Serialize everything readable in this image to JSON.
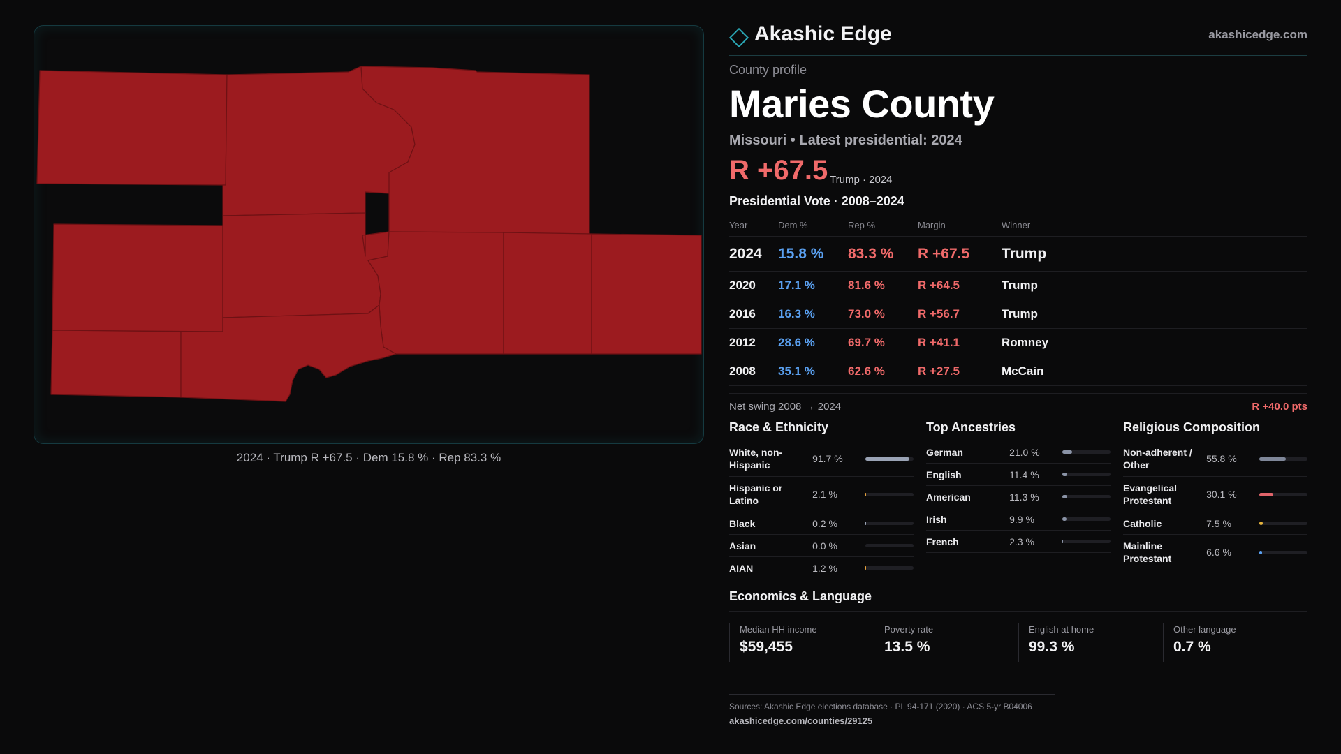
{
  "map": {
    "caption": "2024 · Trump R +67.5 · Dem 15.8 % · Rep 83.3 %",
    "fill_color": "#9c1b1f"
  },
  "brand": {
    "name": "Akashic Edge",
    "url": "akashicedge.com",
    "icon": "diamond-icon"
  },
  "profile": {
    "eyebrow": "County profile",
    "county": "Maries County",
    "subtitle": "Missouri • Latest presidential: 2024",
    "margin": "R +67.5",
    "margin_note": "Trump · 2024"
  },
  "vote": {
    "title": "Presidential Vote · 2008–2024",
    "headers": {
      "year": "Year",
      "dem": "Dem %",
      "rep": "Rep %",
      "margin": "Margin",
      "winner": "Winner"
    },
    "rows": [
      {
        "year": "2024",
        "dem": "15.8 %",
        "rep": "83.3 %",
        "margin": "R +67.5",
        "winner": "Trump"
      },
      {
        "year": "2020",
        "dem": "17.1 %",
        "rep": "81.6 %",
        "margin": "R +64.5",
        "winner": "Trump"
      },
      {
        "year": "2016",
        "dem": "16.3 %",
        "rep": "73.0 %",
        "margin": "R +56.7",
        "winner": "Trump"
      },
      {
        "year": "2012",
        "dem": "28.6 %",
        "rep": "69.7 %",
        "margin": "R +41.1",
        "winner": "Romney"
      },
      {
        "year": "2008",
        "dem": "35.1 %",
        "rep": "62.6 %",
        "margin": "R +27.5",
        "winner": "McCain"
      }
    ],
    "swing_label": "Net swing 2008 → 2024",
    "swing_value": "R +40.0 pts"
  },
  "race": {
    "title": "Race & Ethnicity",
    "rows": [
      {
        "label": "White, non-Hispanic",
        "value": "91.7 %",
        "pct": 91.7,
        "color": "#9aa3b5"
      },
      {
        "label": "Hispanic or Latino",
        "value": "2.1 %",
        "pct": 2.1,
        "color": "#e6a23c"
      },
      {
        "label": "Black",
        "value": "0.2 %",
        "pct": 0.2,
        "color": "#9aa3b5"
      },
      {
        "label": "Asian",
        "value": "0.0 %",
        "pct": 0.0,
        "color": "#9aa3b5"
      },
      {
        "label": "AIAN",
        "value": "1.2 %",
        "pct": 1.2,
        "color": "#e6a23c"
      }
    ]
  },
  "ancestry": {
    "title": "Top Ancestries",
    "rows": [
      {
        "label": "German",
        "value": "21.0 %",
        "pct": 21.0,
        "color": "#8a93a6"
      },
      {
        "label": "English",
        "value": "11.4 %",
        "pct": 11.4,
        "color": "#8a93a6"
      },
      {
        "label": "American",
        "value": "11.3 %",
        "pct": 11.3,
        "color": "#8a93a6"
      },
      {
        "label": "Irish",
        "value": "9.9 %",
        "pct": 9.9,
        "color": "#8a93a6"
      },
      {
        "label": "French",
        "value": "2.3 %",
        "pct": 2.3,
        "color": "#8a93a6"
      }
    ]
  },
  "religion": {
    "title": "Religious Composition",
    "rows": [
      {
        "label": "Non-adherent / Other",
        "value": "55.8 %",
        "pct": 55.8,
        "color": "#7f8799"
      },
      {
        "label": "Evangelical Protestant",
        "value": "30.1 %",
        "pct": 30.1,
        "color": "#e0646a"
      },
      {
        "label": "Catholic",
        "value": "7.5 %",
        "pct": 7.5,
        "color": "#e6b43c"
      },
      {
        "label": "Mainline Protestant",
        "value": "6.6 %",
        "pct": 6.6,
        "color": "#5aa0f0"
      }
    ]
  },
  "economics": {
    "title": "Economics & Language",
    "cells": [
      {
        "label": "Median HH income",
        "value": "$59,455"
      },
      {
        "label": "Poverty rate",
        "value": "13.5 %"
      },
      {
        "label": "English at home",
        "value": "99.3 %"
      },
      {
        "label": "Other language",
        "value": "0.7 %"
      }
    ]
  },
  "sources": {
    "text": "Sources: Akashic Edge elections database · PL 94-171 (2020) · ACS 5-yr B04006",
    "url": "akashicedge.com/counties/29125"
  }
}
